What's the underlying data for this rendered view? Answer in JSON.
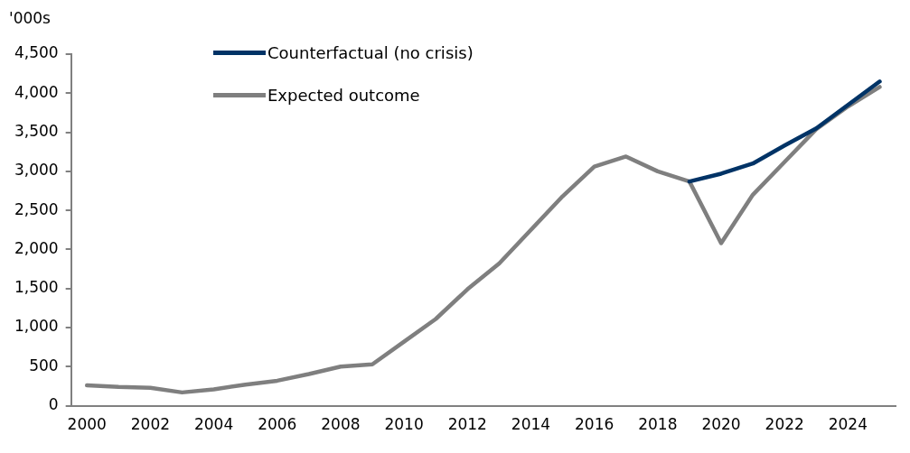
{
  "chart_data": {
    "type": "line",
    "ylabel": "'000s",
    "categories": [
      "2000",
      null,
      "2002",
      null,
      "2004",
      null,
      "2006",
      null,
      "2008",
      null,
      "2010",
      null,
      "2012",
      null,
      "2014",
      null,
      "2016",
      null,
      "2018",
      null,
      "2020",
      null,
      "2022",
      null,
      "2024",
      null
    ],
    "series": [
      {
        "name": "Counterfactual (no crisis)",
        "color": "#003366",
        "values": [
          null,
          null,
          null,
          null,
          null,
          null,
          null,
          null,
          null,
          null,
          null,
          null,
          null,
          null,
          null,
          null,
          null,
          null,
          null,
          2870,
          2970,
          3100,
          3330,
          3550,
          3850,
          4150
        ]
      },
      {
        "name": "Expected outcome",
        "color": "#7f7f7f",
        "values": [
          260,
          240,
          230,
          170,
          210,
          270,
          320,
          405,
          500,
          530,
          820,
          1110,
          1490,
          1820,
          2250,
          2680,
          3060,
          3190,
          3000,
          2870,
          2080,
          2700,
          3120,
          3540,
          3830,
          4080
        ]
      }
    ],
    "ylim": [
      0,
      4500
    ],
    "yticks": [
      0,
      500,
      {
        "value": 1000,
        "label": "1,000"
      },
      {
        "value": 1500,
        "label": "1,500"
      },
      {
        "value": 2000,
        "label": "2,000"
      },
      {
        "value": 2500,
        "label": "2,500"
      },
      {
        "value": 3000,
        "label": "3,000"
      },
      {
        "value": 3500,
        "label": "3,500"
      },
      {
        "value": 4000,
        "label": "4,000"
      },
      {
        "value": 4500,
        "label": "4,500"
      }
    ],
    "grid": false,
    "legend": "top left",
    "marker": "none",
    "line_style": "solid"
  }
}
